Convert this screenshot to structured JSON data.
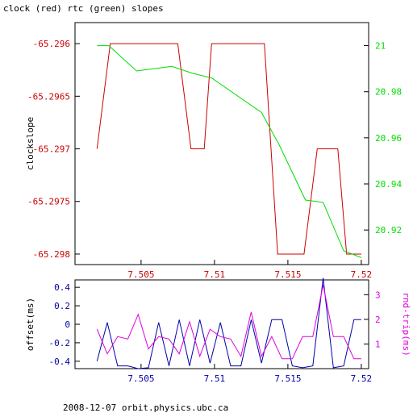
{
  "title": "clock (red) rtc (green) slopes",
  "footer": "2008-12-07  orbit.physics.ubc.ca",
  "colors": {
    "axis": "#000000",
    "red": "#cc0000",
    "green": "#00dd00",
    "blue": "#0000aa",
    "magenta": "#dd00dd"
  },
  "chart_data": [
    {
      "type": "line",
      "ylabel": "clockslope",
      "x_ticks": [
        "7.505",
        "7.51",
        "7.515",
        "7.52"
      ],
      "xlim": [
        7.5005,
        7.5205
      ],
      "y_left": {
        "ticks": [
          "-65.296",
          "-65.2965",
          "-65.297",
          "-65.2975",
          "-65.298"
        ],
        "ylim": [
          -65.2981,
          -65.2958
        ]
      },
      "y_right": {
        "ticks": [
          "21",
          "20.98",
          "20.96",
          "20.94",
          "20.92"
        ],
        "ylim": [
          20.905,
          21.01
        ]
      },
      "series": [
        {
          "color_key": "red",
          "axis": "left",
          "x": [
            7.502,
            7.5029,
            7.5075,
            7.5084,
            7.5093,
            7.5098,
            7.5134,
            7.5143,
            7.5161,
            7.517,
            7.5184,
            7.519,
            7.52
          ],
          "y": [
            -65.297,
            -65.296,
            -65.296,
            -65.297,
            -65.297,
            -65.296,
            -65.296,
            -65.298,
            -65.298,
            -65.297,
            -65.297,
            -65.298,
            -65.298
          ]
        },
        {
          "color_key": "green",
          "axis": "right",
          "x": [
            7.502,
            7.5028,
            7.5047,
            7.5071,
            7.5085,
            7.5098,
            7.5132,
            7.5144,
            7.5162,
            7.5174,
            7.5188,
            7.52
          ],
          "y": [
            21.0,
            21.0,
            20.989,
            20.991,
            20.988,
            20.986,
            20.971,
            20.957,
            20.933,
            20.932,
            20.911,
            20.908
          ]
        }
      ]
    },
    {
      "type": "line",
      "ylabel": "offset(ms)",
      "y2label": "rnd-trip(ms)",
      "x_ticks": [
        "7.505",
        "7.51",
        "7.515",
        "7.52"
      ],
      "xlim": [
        7.5005,
        7.5205
      ],
      "y_left": {
        "ticks": [
          "0.4",
          "0.2",
          "0",
          "-0.2",
          "-0.4"
        ],
        "ylim": [
          -0.48,
          0.48
        ]
      },
      "y_right": {
        "ticks": [
          "3",
          "2",
          "1"
        ],
        "ylim": [
          0,
          3.6
        ]
      },
      "series": [
        {
          "color_key": "blue",
          "axis": "left",
          "x": [
            7.502,
            7.5027,
            7.5034,
            7.5041,
            7.5048,
            7.5055,
            7.5062,
            7.5069,
            7.5076,
            7.5083,
            7.509,
            7.5097,
            7.5104,
            7.5111,
            7.5118,
            7.5125,
            7.5132,
            7.5139,
            7.5146,
            7.5153,
            7.516,
            7.5167,
            7.5174,
            7.5181,
            7.5188,
            7.5195,
            7.52
          ],
          "y": [
            -0.4,
            0.02,
            -0.45,
            -0.45,
            -0.48,
            -0.47,
            0.02,
            -0.45,
            0.05,
            -0.45,
            0.05,
            -0.42,
            0.02,
            -0.45,
            -0.45,
            0.05,
            -0.42,
            0.05,
            0.05,
            -0.45,
            -0.47,
            -0.45,
            0.5,
            -0.47,
            -0.45,
            0.05,
            0.05
          ]
        },
        {
          "color_key": "magenta",
          "axis": "right",
          "x": [
            7.502,
            7.5027,
            7.5034,
            7.5041,
            7.5048,
            7.5055,
            7.5062,
            7.5069,
            7.5076,
            7.5083,
            7.509,
            7.5097,
            7.5104,
            7.5111,
            7.5118,
            7.5125,
            7.5132,
            7.5139,
            7.5146,
            7.5153,
            7.516,
            7.5167,
            7.5174,
            7.5181,
            7.5188,
            7.5195,
            7.52
          ],
          "y": [
            1.6,
            0.6,
            1.3,
            1.2,
            2.2,
            0.8,
            1.3,
            1.2,
            0.6,
            1.9,
            0.5,
            1.6,
            1.3,
            1.2,
            0.5,
            2.3,
            0.5,
            1.3,
            0.4,
            0.4,
            1.3,
            1.3,
            3.4,
            1.3,
            1.3,
            0.4,
            0.4
          ]
        }
      ]
    }
  ]
}
